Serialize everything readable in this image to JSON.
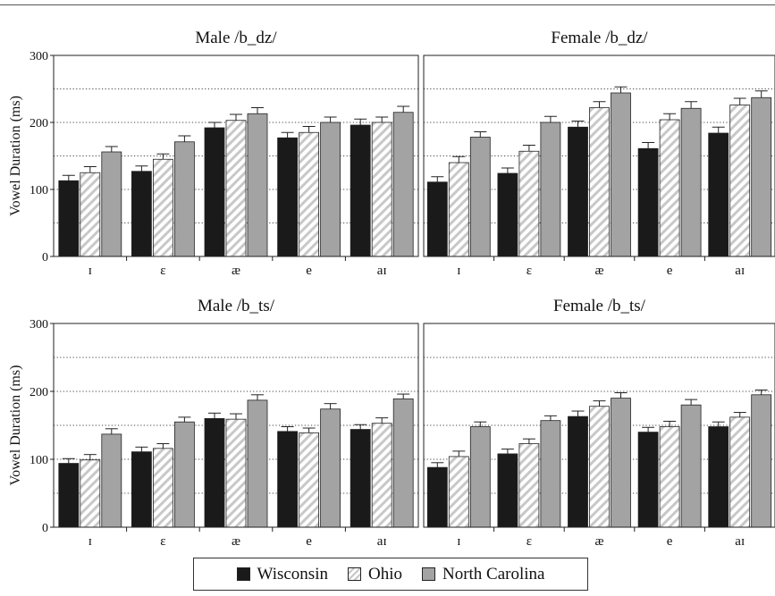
{
  "legend": {
    "items": [
      {
        "label": "Wisconsin",
        "key": "wisconsin"
      },
      {
        "label": "Ohio",
        "key": "ohio"
      },
      {
        "label": "North Carolina",
        "key": "nc"
      }
    ]
  },
  "colors": {
    "wisconsin": "#1a1a1a",
    "ohio_fill": "#ffffff",
    "ohio_hatch": "#c8c8c8",
    "nc": "#a3a3a3"
  },
  "chart_data": [
    {
      "type": "bar",
      "title": "Male /b_dz/",
      "ylabel": "Vowel Duration (ms)",
      "ylim": [
        0,
        300
      ],
      "yticks": [
        0,
        100,
        200,
        300
      ],
      "categories": [
        "ɪ",
        "ɛ",
        "æ",
        "e",
        "aɪ"
      ],
      "series": [
        {
          "name": "Wisconsin",
          "values": [
            113,
            127,
            192,
            177,
            196
          ],
          "errors": [
            8,
            8,
            8,
            8,
            9
          ]
        },
        {
          "name": "Ohio",
          "values": [
            125,
            145,
            203,
            185,
            200
          ],
          "errors": [
            9,
            8,
            9,
            9,
            8
          ]
        },
        {
          "name": "North Carolina",
          "values": [
            156,
            171,
            213,
            200,
            215
          ],
          "errors": [
            8,
            9,
            9,
            8,
            9
          ]
        }
      ]
    },
    {
      "type": "bar",
      "title": "Female /b_dz/",
      "ylabel": "",
      "ylim": [
        0,
        300
      ],
      "yticks": [
        0,
        100,
        200,
        300
      ],
      "categories": [
        "ɪ",
        "ɛ",
        "æ",
        "e",
        "aɪ"
      ],
      "series": [
        {
          "name": "Wisconsin",
          "values": [
            111,
            124,
            193,
            161,
            184
          ],
          "errors": [
            8,
            8,
            9,
            9,
            9
          ]
        },
        {
          "name": "Ohio",
          "values": [
            140,
            157,
            222,
            204,
            226
          ],
          "errors": [
            9,
            9,
            9,
            9,
            10
          ]
        },
        {
          "name": "North Carolina",
          "values": [
            178,
            200,
            244,
            221,
            237
          ],
          "errors": [
            8,
            9,
            9,
            10,
            10
          ]
        }
      ]
    },
    {
      "type": "bar",
      "title": "Male /b_ts/",
      "ylabel": "Vowel Duration (ms)",
      "ylim": [
        0,
        300
      ],
      "yticks": [
        0,
        100,
        200,
        300
      ],
      "categories": [
        "ɪ",
        "ɛ",
        "æ",
        "e",
        "aɪ"
      ],
      "series": [
        {
          "name": "Wisconsin",
          "values": [
            94,
            111,
            160,
            141,
            144
          ],
          "errors": [
            7,
            7,
            8,
            7,
            7
          ]
        },
        {
          "name": "Ohio",
          "values": [
            99,
            116,
            159,
            139,
            153
          ],
          "errors": [
            8,
            7,
            8,
            7,
            8
          ]
        },
        {
          "name": "North Carolina",
          "values": [
            137,
            155,
            187,
            174,
            189
          ],
          "errors": [
            8,
            7,
            8,
            8,
            7
          ]
        }
      ]
    },
    {
      "type": "bar",
      "title": "Female /b_ts/",
      "ylabel": "",
      "ylim": [
        0,
        300
      ],
      "yticks": [
        0,
        100,
        200,
        300
      ],
      "categories": [
        "ɪ",
        "ɛ",
        "æ",
        "e",
        "aɪ"
      ],
      "series": [
        {
          "name": "Wisconsin",
          "values": [
            88,
            108,
            163,
            140,
            148
          ],
          "errors": [
            7,
            7,
            8,
            7,
            7
          ]
        },
        {
          "name": "Ohio",
          "values": [
            104,
            123,
            178,
            148,
            162
          ],
          "errors": [
            8,
            7,
            8,
            8,
            7
          ]
        },
        {
          "name": "North Carolina",
          "values": [
            148,
            157,
            190,
            180,
            195
          ],
          "errors": [
            7,
            7,
            8,
            8,
            7
          ]
        }
      ]
    }
  ]
}
